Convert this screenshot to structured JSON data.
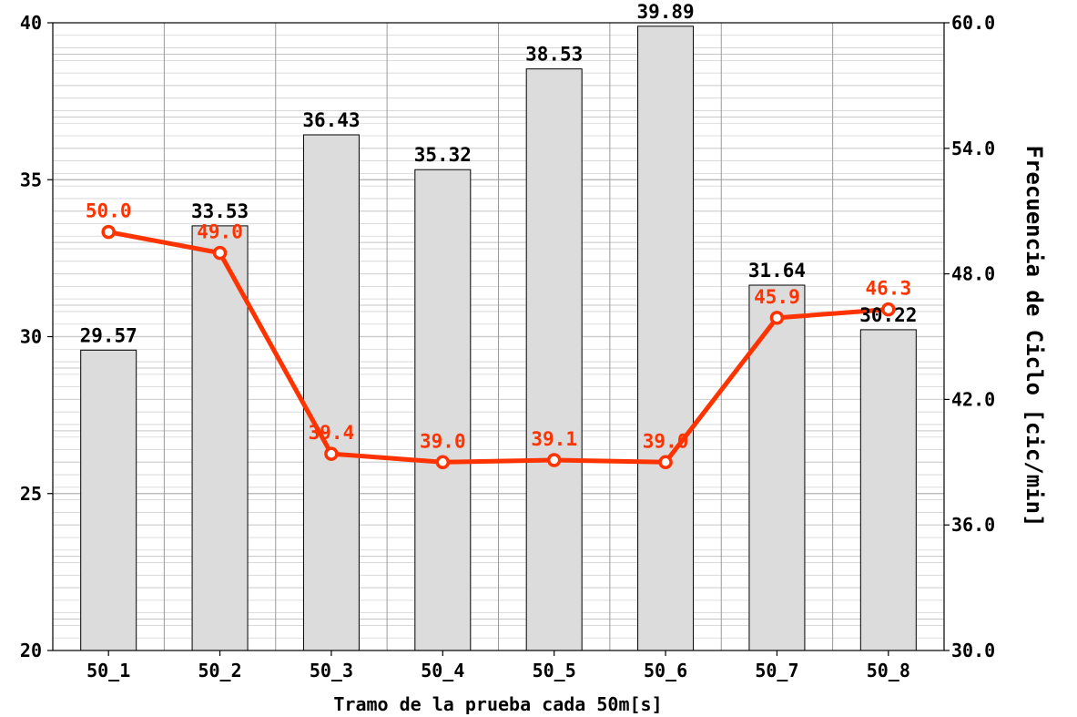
{
  "chart_data": {
    "type": "bar",
    "categories": [
      "50_1",
      "50_2",
      "50_3",
      "50_4",
      "50_5",
      "50_6",
      "50_7",
      "50_8"
    ],
    "bars": {
      "values": [
        29.57,
        33.53,
        36.43,
        35.32,
        38.53,
        39.89,
        31.64,
        30.22
      ],
      "labels": [
        "29.57",
        "33.53",
        "36.43",
        "35.32",
        "38.53",
        "39.89",
        "31.64",
        "30.22"
      ],
      "color": "#dcdcdc"
    },
    "line": {
      "values": [
        50.0,
        49.0,
        39.4,
        39.0,
        39.1,
        39.0,
        45.9,
        46.3
      ],
      "labels": [
        "50.0",
        "49.0",
        "39.4",
        "39.0",
        "39.1",
        "39.0",
        "45.9",
        "46.3"
      ],
      "color": "#ff3300"
    },
    "xlabel": "Tramo de la prueba cada 50m[s]",
    "ylabel": "",
    "ylabel_right": "Frecuencia de Ciclo [cic/min]",
    "ylim": [
      20,
      40
    ],
    "ylim_right": [
      30.0,
      60.0
    ],
    "yticks": [
      "20",
      "25",
      "30",
      "35",
      "40"
    ],
    "yticks_right": [
      "30.0",
      "36.0",
      "42.0",
      "48.0",
      "54.0",
      "60.0"
    ],
    "grid": true
  }
}
